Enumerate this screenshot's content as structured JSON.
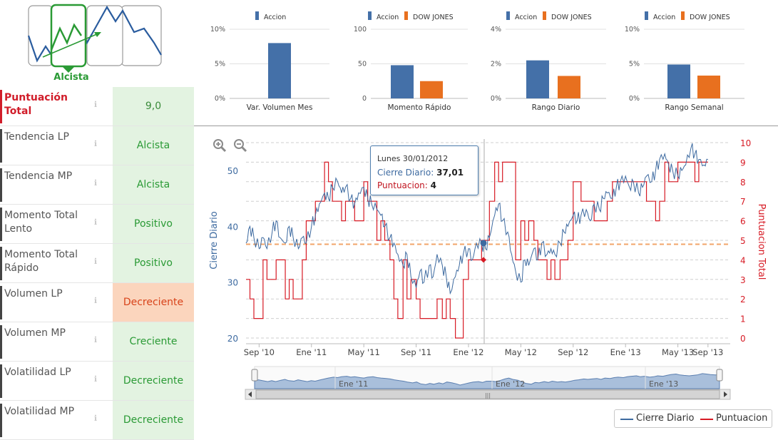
{
  "trend": {
    "label": "Alcista",
    "icon": "trend-chart-icon"
  },
  "rows": [
    {
      "label": "Puntuación Total",
      "value": "9,0",
      "status": "good"
    },
    {
      "label": "Tendencia LP",
      "value": "Alcista",
      "status": "good"
    },
    {
      "label": "Tendencia MP",
      "value": "Alcista",
      "status": "good"
    },
    {
      "label": "Momento Total Lento",
      "value": "Positivo",
      "status": "good"
    },
    {
      "label": "Momento Total Rápido",
      "value": "Positivo",
      "status": "good"
    },
    {
      "label": "Volumen LP",
      "value": "Decreciente",
      "status": "bad"
    },
    {
      "label": "Volumen MP",
      "value": "Creciente",
      "status": "good"
    },
    {
      "label": "Volatilidad LP",
      "value": "Decreciente",
      "status": "good"
    },
    {
      "label": "Volatilidad MP",
      "value": "Decreciente",
      "status": "good"
    }
  ],
  "colors": {
    "accion": "#4470a8",
    "dow": "#e8701f",
    "cierre": "#3d6aa0",
    "puntuacion": "#d71a24",
    "good": "#2a9a35",
    "bad": "#d8431a"
  },
  "chart_data": [
    {
      "type": "bar",
      "title": "Var. Volumen Mes",
      "legend": [
        "Accion"
      ],
      "yticks": [
        "10%",
        "5%",
        "0%"
      ],
      "ylim": [
        0,
        10
      ],
      "series": [
        {
          "name": "Accion",
          "values": [
            8.0
          ]
        }
      ]
    },
    {
      "type": "bar",
      "title": "Momento Rápido",
      "legend": [
        "Accion",
        "DOW JONES"
      ],
      "yticks": [
        "100",
        "50",
        "0"
      ],
      "ylim": [
        0,
        100
      ],
      "series": [
        {
          "name": "Accion",
          "values": [
            48
          ]
        },
        {
          "name": "DOW JONES",
          "values": [
            25
          ]
        }
      ]
    },
    {
      "type": "bar",
      "title": "Rango Diario",
      "legend": [
        "Accion",
        "DOW JONES"
      ],
      "yticks": [
        "4%",
        "2%",
        "0%"
      ],
      "ylim": [
        0,
        4
      ],
      "series": [
        {
          "name": "Accion",
          "values": [
            2.2
          ]
        },
        {
          "name": "DOW JONES",
          "values": [
            1.3
          ]
        }
      ]
    },
    {
      "type": "bar",
      "title": "Rango Semanal",
      "legend": [
        "Accion",
        "DOW JONES"
      ],
      "yticks": [
        "10%",
        "5%",
        "0%"
      ],
      "ylim": [
        0,
        10
      ],
      "series": [
        {
          "name": "Accion",
          "values": [
            4.9
          ]
        },
        {
          "name": "DOW JONES",
          "values": [
            3.3
          ]
        }
      ]
    },
    {
      "type": "line",
      "ylabel": "Cierre Diario",
      "y2label": "Puntuacion Total",
      "ylim": [
        20,
        55
      ],
      "yticks": [
        "20",
        "30",
        "40",
        "50"
      ],
      "y2lim": [
        0,
        10
      ],
      "y2ticks": [
        "0",
        "1",
        "2",
        "3",
        "4",
        "5",
        "6",
        "7",
        "8",
        "9",
        "10"
      ],
      "xlim": [
        0,
        37
      ],
      "xticks": [
        {
          "label": "Sep '10",
          "at": 1
        },
        {
          "label": "Ene '11",
          "at": 5
        },
        {
          "label": "May '11",
          "at": 9
        },
        {
          "label": "Sep '11",
          "at": 13
        },
        {
          "label": "Ene '12",
          "at": 17
        },
        {
          "label": "May '12",
          "at": 21
        },
        {
          "label": "Sep '12",
          "at": 25
        },
        {
          "label": "Ene '13",
          "at": 29
        },
        {
          "label": "May '13",
          "at": 33
        },
        {
          "label": "Sep '13",
          "at": 35.3
        }
      ],
      "reference_y2": 4.8,
      "series": [
        {
          "name": "Cierre Diario",
          "axis": "y",
          "values": [
            [
              0,
              37
            ],
            [
              0.3,
              40
            ],
            [
              0.6,
              38
            ],
            [
              1,
              36
            ],
            [
              1.3,
              38
            ],
            [
              1.6,
              36
            ],
            [
              2,
              39
            ],
            [
              2.3,
              41
            ],
            [
              2.6,
              38
            ],
            [
              3,
              37
            ],
            [
              3.3,
              40
            ],
            [
              3.6,
              38
            ],
            [
              4,
              36
            ],
            [
              4.3,
              38
            ],
            [
              4.6,
              37
            ],
            [
              5,
              40
            ],
            [
              5.3,
              42
            ],
            [
              5.6,
              44
            ],
            [
              6,
              46
            ],
            [
              6.3,
              45
            ],
            [
              6.6,
              47
            ],
            [
              7,
              48
            ],
            [
              7.3,
              46
            ],
            [
              7.6,
              47
            ],
            [
              8,
              45
            ],
            [
              8.3,
              44
            ],
            [
              8.6,
              46
            ],
            [
              9,
              47
            ],
            [
              9.3,
              45
            ],
            [
              9.6,
              44
            ],
            [
              10,
              43
            ],
            [
              10.3,
              42
            ],
            [
              10.6,
              40
            ],
            [
              11,
              38
            ],
            [
              11.3,
              37
            ],
            [
              11.6,
              35
            ],
            [
              12,
              33
            ],
            [
              12.3,
              35
            ],
            [
              12.6,
              31
            ],
            [
              13,
              29
            ],
            [
              13.3,
              32
            ],
            [
              13.6,
              30
            ],
            [
              14,
              33
            ],
            [
              14.3,
              31
            ],
            [
              14.6,
              35
            ],
            [
              15,
              33
            ],
            [
              15.3,
              31
            ],
            [
              15.6,
              28
            ],
            [
              16,
              31
            ],
            [
              16.3,
              33
            ],
            [
              16.6,
              35
            ],
            [
              17,
              36
            ],
            [
              17.3,
              34
            ],
            [
              17.6,
              37
            ],
            [
              18,
              37
            ],
            [
              18.3,
              36
            ],
            [
              18.6,
              38
            ],
            [
              19,
              42
            ],
            [
              19.3,
              44
            ],
            [
              19.6,
              41
            ],
            [
              20,
              39
            ],
            [
              20.3,
              35
            ],
            [
              20.6,
              32
            ],
            [
              21,
              30
            ],
            [
              21.3,
              34
            ],
            [
              21.6,
              33
            ],
            [
              22,
              36
            ],
            [
              22.3,
              34
            ],
            [
              22.6,
              37
            ],
            [
              23,
              35
            ],
            [
              23.3,
              36
            ],
            [
              23.6,
              35
            ],
            [
              24,
              37
            ],
            [
              24.3,
              39
            ],
            [
              24.6,
              40
            ],
            [
              25,
              42
            ],
            [
              25.3,
              41
            ],
            [
              25.6,
              42
            ],
            [
              26,
              43
            ],
            [
              26.3,
              41
            ],
            [
              26.6,
              44
            ],
            [
              27,
              43
            ],
            [
              27.3,
              45
            ],
            [
              27.6,
              46
            ],
            [
              28,
              45
            ],
            [
              28.3,
              47
            ],
            [
              28.6,
              48
            ],
            [
              29,
              49
            ],
            [
              29.3,
              47
            ],
            [
              29.6,
              48
            ],
            [
              30,
              46
            ],
            [
              30.3,
              47
            ],
            [
              30.6,
              49
            ],
            [
              31,
              48
            ],
            [
              31.3,
              50
            ],
            [
              31.6,
              52
            ],
            [
              32,
              53
            ],
            [
              32.3,
              51
            ],
            [
              32.6,
              50
            ],
            [
              33,
              49
            ],
            [
              33.3,
              50
            ],
            [
              33.6,
              51
            ],
            [
              34,
              54
            ],
            [
              34.3,
              53
            ],
            [
              34.6,
              52
            ],
            [
              35,
              51
            ],
            [
              35.3,
              52
            ]
          ]
        },
        {
          "name": "Puntuacion",
          "axis": "y2",
          "values": [
            [
              0,
              3
            ],
            [
              0.3,
              2
            ],
            [
              0.6,
              1
            ],
            [
              1,
              1
            ],
            [
              1.3,
              4
            ],
            [
              1.6,
              3
            ],
            [
              2,
              3
            ],
            [
              2.3,
              4
            ],
            [
              2.6,
              4
            ],
            [
              3,
              2
            ],
            [
              3.3,
              3
            ],
            [
              3.6,
              2
            ],
            [
              4,
              2
            ],
            [
              4.3,
              4
            ],
            [
              4.6,
              6
            ],
            [
              5,
              6
            ],
            [
              5.3,
              7
            ],
            [
              5.6,
              7
            ],
            [
              6,
              9
            ],
            [
              6.3,
              8
            ],
            [
              6.6,
              7
            ],
            [
              7,
              7
            ],
            [
              7.3,
              6
            ],
            [
              7.6,
              7
            ],
            [
              8,
              7
            ],
            [
              8.3,
              6
            ],
            [
              8.6,
              6
            ],
            [
              9,
              8
            ],
            [
              9.3,
              7
            ],
            [
              9.6,
              7
            ],
            [
              10,
              5
            ],
            [
              10.3,
              6
            ],
            [
              10.6,
              5
            ],
            [
              11,
              4
            ],
            [
              11.3,
              2
            ],
            [
              11.6,
              1
            ],
            [
              12,
              4
            ],
            [
              12.3,
              2
            ],
            [
              12.6,
              3
            ],
            [
              13,
              2
            ],
            [
              13.3,
              1
            ],
            [
              13.6,
              1
            ],
            [
              14,
              1
            ],
            [
              14.3,
              1
            ],
            [
              14.6,
              2
            ],
            [
              15,
              1
            ],
            [
              15.3,
              2
            ],
            [
              15.6,
              1
            ],
            [
              16,
              0
            ],
            [
              16.3,
              0
            ],
            [
              16.6,
              3
            ],
            [
              17,
              4
            ],
            [
              17.3,
              4
            ],
            [
              17.6,
              4
            ],
            [
              18,
              5
            ],
            [
              18.3,
              5
            ],
            [
              18.6,
              7
            ],
            [
              19,
              9
            ],
            [
              19.3,
              8
            ],
            [
              19.6,
              9
            ],
            [
              20,
              9
            ],
            [
              20.3,
              9
            ],
            [
              20.6,
              4
            ],
            [
              21,
              6
            ],
            [
              21.3,
              5
            ],
            [
              21.6,
              6
            ],
            [
              22,
              5
            ],
            [
              22.3,
              4
            ],
            [
              22.6,
              4
            ],
            [
              23,
              3
            ],
            [
              23.3,
              4
            ],
            [
              23.6,
              3
            ],
            [
              24,
              4
            ],
            [
              24.3,
              4
            ],
            [
              24.6,
              5
            ],
            [
              25,
              8
            ],
            [
              25.3,
              8
            ],
            [
              25.6,
              7
            ],
            [
              26,
              7
            ],
            [
              26.3,
              7
            ],
            [
              26.6,
              6
            ],
            [
              27,
              6
            ],
            [
              27.3,
              6
            ],
            [
              27.6,
              7
            ],
            [
              28,
              8
            ],
            [
              28.3,
              8
            ],
            [
              28.6,
              8
            ],
            [
              29,
              8
            ],
            [
              29.3,
              8
            ],
            [
              29.6,
              8
            ],
            [
              30,
              8
            ],
            [
              30.3,
              8
            ],
            [
              30.6,
              7
            ],
            [
              31,
              7
            ],
            [
              31.3,
              6
            ],
            [
              31.6,
              7
            ],
            [
              32,
              9
            ],
            [
              32.3,
              8
            ],
            [
              32.6,
              8
            ],
            [
              33,
              9
            ],
            [
              33.3,
              9
            ],
            [
              33.6,
              9
            ],
            [
              34,
              9
            ],
            [
              34.3,
              8
            ],
            [
              34.6,
              9
            ],
            [
              35,
              9
            ],
            [
              35.3,
              9
            ]
          ]
        }
      ]
    }
  ],
  "tooltip": {
    "date": "Lunes 30/01/2012",
    "cierre_label": "Cierre Diario:",
    "cierre_value": "37,01",
    "punt_label": "Puntuacion:",
    "punt_value": "4",
    "cursor_x": 18.2
  },
  "navigator": {
    "labels": [
      "Ene '11",
      "Ene '12",
      "Ene '13"
    ]
  },
  "legend": {
    "items": [
      "Cierre Diario",
      "Puntuacion"
    ]
  },
  "zoom": {
    "in": "zoom-in-icon",
    "out": "zoom-out-icon"
  }
}
